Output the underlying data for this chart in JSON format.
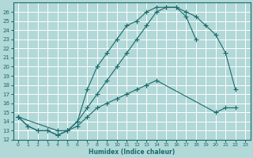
{
  "background_color": "#b2d8d8",
  "grid_color": "#ffffff",
  "line_color": "#1a6b6b",
  "xlabel": "Humidex (Indice chaleur)",
  "xlim": [
    -0.5,
    23.5
  ],
  "ylim": [
    12,
    27
  ],
  "yticks": [
    12,
    13,
    14,
    15,
    16,
    17,
    18,
    19,
    20,
    21,
    22,
    23,
    24,
    25,
    26
  ],
  "xticks": [
    0,
    1,
    2,
    3,
    4,
    5,
    6,
    7,
    8,
    9,
    10,
    11,
    12,
    13,
    14,
    15,
    16,
    17,
    18,
    19,
    20,
    21,
    22,
    23
  ],
  "curve1_x": [
    0,
    1,
    2,
    3,
    4,
    5,
    6,
    7,
    8,
    9,
    10,
    11,
    12,
    13,
    14,
    15,
    16,
    17,
    18
  ],
  "curve1_y": [
    14.5,
    13.5,
    13.0,
    13.0,
    12.5,
    13.0,
    14.0,
    17.5,
    20.0,
    21.5,
    23.0,
    24.5,
    25.0,
    26.0,
    26.5,
    26.5,
    26.5,
    25.5,
    23.0
  ],
  "curve2_x": [
    0,
    1,
    2,
    3,
    4,
    5,
    6,
    7,
    8,
    9,
    10,
    11,
    12,
    13,
    14,
    15,
    16,
    17,
    18,
    19,
    20,
    21,
    22
  ],
  "curve2_y": [
    14.5,
    13.5,
    13.0,
    13.0,
    12.5,
    13.0,
    14.0,
    15.5,
    17.0,
    18.5,
    20.0,
    21.5,
    23.0,
    24.5,
    26.0,
    26.5,
    26.5,
    26.0,
    25.5,
    24.5,
    23.5,
    21.5,
    17.5
  ],
  "curve3_x": [
    0,
    4,
    5,
    6,
    7,
    8,
    9,
    10,
    11,
    12,
    13,
    14,
    20,
    21,
    22
  ],
  "curve3_y": [
    14.5,
    13.0,
    13.0,
    13.5,
    14.5,
    15.5,
    16.0,
    16.5,
    17.0,
    17.5,
    18.0,
    18.5,
    15.0,
    15.5,
    15.5
  ]
}
